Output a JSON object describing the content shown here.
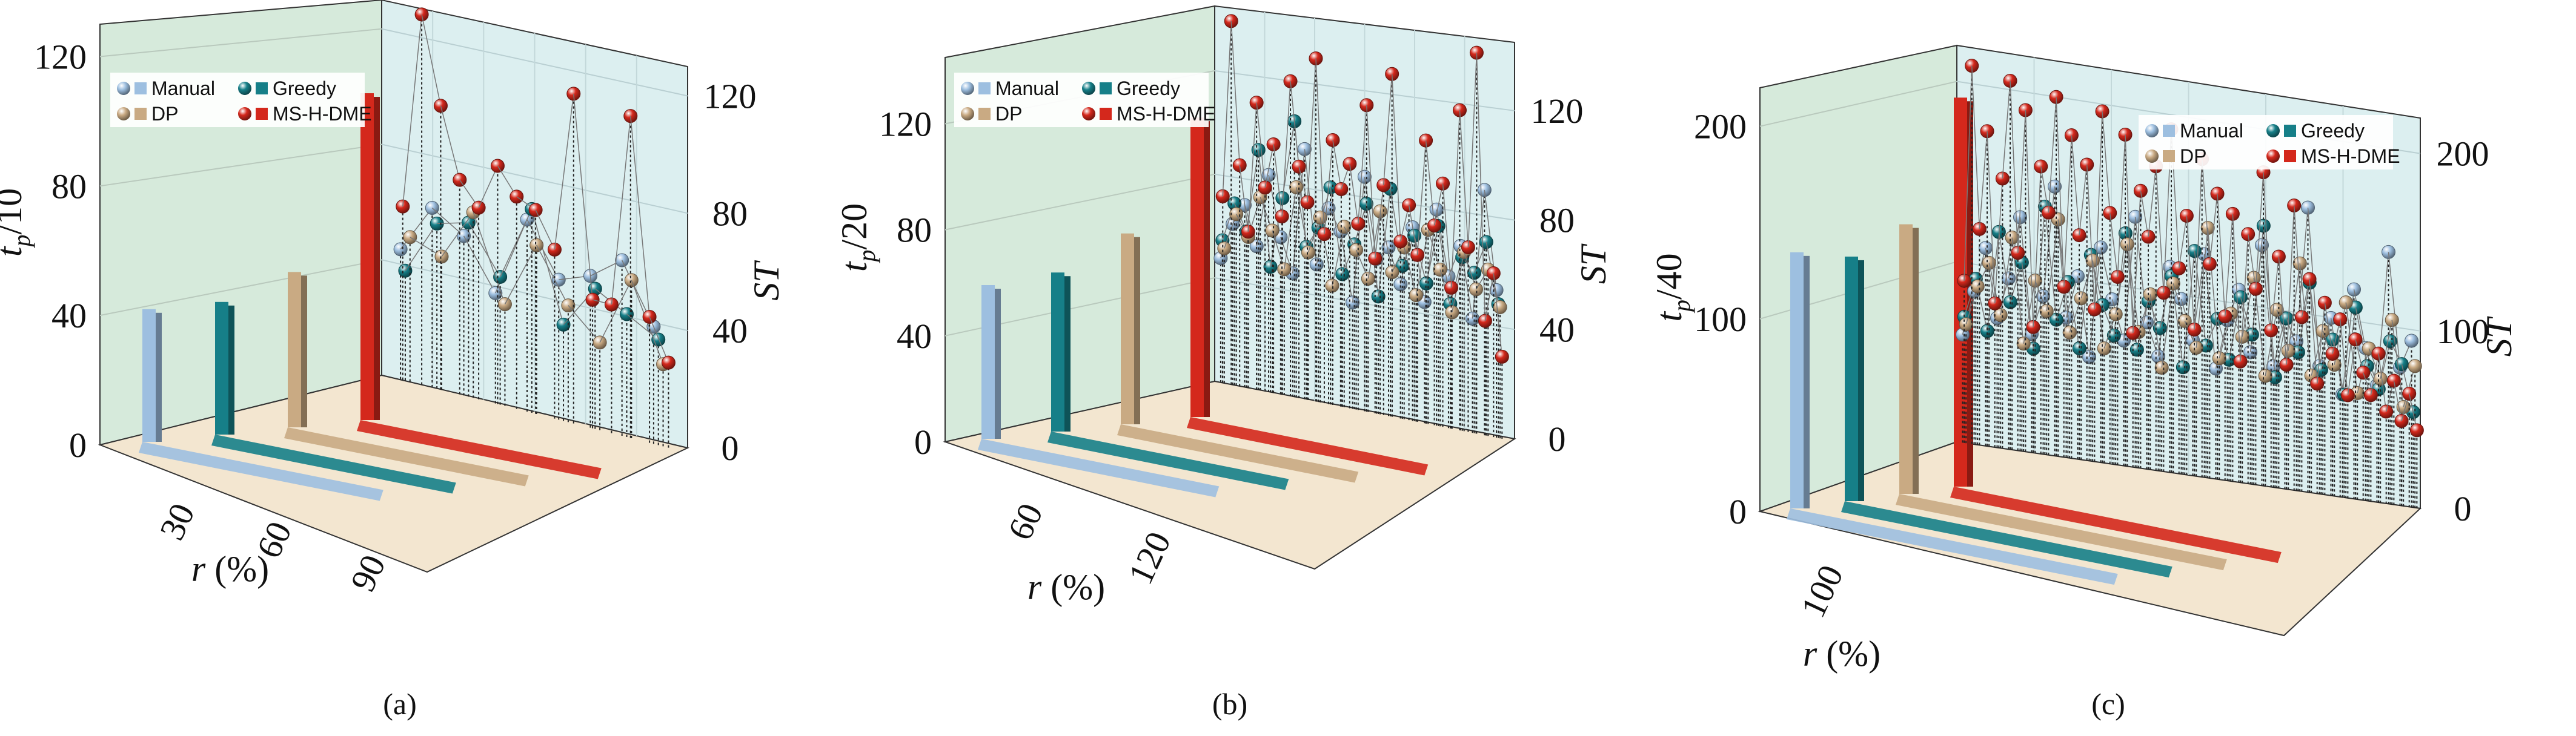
{
  "legend": {
    "entries": [
      "Manual",
      "Greedy",
      "DP",
      "MS-H-DME"
    ]
  },
  "colors": {
    "Manual": "#9dbfe0",
    "Greedy": "#167f88",
    "DP": "#c9aa83",
    "MS-H-DME": "#d4281c",
    "left_wall": "#d6eadb",
    "right_wall": "#dceff0",
    "floor": "#f3e6d0"
  },
  "chart_data": [
    {
      "panel": "a",
      "caption": "(a)",
      "type": "bar+scatter-3d",
      "left_axis": {
        "label_main": "t",
        "label_sub": "p",
        "label_suffix": "/10",
        "ticks": [
          "0",
          "40",
          "80",
          "120"
        ],
        "range": [
          0,
          130
        ]
      },
      "right_axis": {
        "label": "ST",
        "ticks": [
          "0",
          "40",
          "80",
          "120"
        ],
        "range": [
          0,
          130
        ]
      },
      "depth_axis": {
        "label": "r (%)",
        "ticks": [
          "30",
          "60",
          "90"
        ],
        "range": [
          0,
          100
        ]
      },
      "bars": [
        {
          "name": "Manual",
          "tp": 41,
          "r": 100
        },
        {
          "name": "Greedy",
          "tp": 41,
          "r": 100
        },
        {
          "name": "DP",
          "tp": 48,
          "r": 100
        },
        {
          "name": "MS-H-DME",
          "tp": 101,
          "r": 100
        }
      ],
      "series": [
        {
          "name": "Manual",
          "values": [
            45,
            62,
            55,
            38,
            66,
            48,
            52,
            60,
            40
          ]
        },
        {
          "name": "Greedy",
          "values": [
            38,
            57,
            60,
            44,
            70,
            33,
            48,
            42,
            36
          ]
        },
        {
          "name": "DP",
          "values": [
            50,
            46,
            64,
            35,
            58,
            40,
            30,
            54,
            28
          ]
        },
        {
          "name": "MS-H-DME",
          "values": [
            60,
            128,
            98,
            74,
            66,
            82,
            73,
            70,
            58,
            113,
            44,
            44,
            110,
            43,
            29
          ]
        }
      ]
    },
    {
      "panel": "b",
      "caption": "(b)",
      "type": "bar+scatter-3d",
      "left_axis": {
        "label_main": "t",
        "label_sub": "p",
        "label_suffix": "/20",
        "ticks": [
          "0",
          "40",
          "80",
          "120"
        ],
        "range": [
          0,
          145
        ]
      },
      "right_axis": {
        "label": "ST",
        "ticks": [
          "0",
          "40",
          "80",
          "120"
        ],
        "range": [
          0,
          145
        ]
      },
      "depth_axis": {
        "label": "r (%)",
        "ticks": [
          "60",
          "120"
        ],
        "range": [
          0,
          150
        ]
      },
      "bars": [
        {
          "name": "Manual",
          "tp": 58,
          "r": 150
        },
        {
          "name": "Greedy",
          "tp": 60,
          "r": 150
        },
        {
          "name": "DP",
          "tp": 72,
          "r": 150
        },
        {
          "name": "MS-H-DME",
          "tp": 113,
          "r": 150
        }
      ],
      "series": [
        {
          "name": "Manual",
          "values": [
            48,
            62,
            70,
            55,
            83,
            60,
            47,
            95,
            52,
            74,
            66,
            40,
            88,
            58,
            63,
            50,
            72,
            45,
            80,
            56,
            68,
            42,
            90,
            54
          ]
        },
        {
          "name": "Greedy",
          "values": [
            55,
            70,
            60,
            92,
            48,
            75,
            105,
            58,
            66,
            82,
            50,
            62,
            78,
            44,
            85,
            57,
            69,
            52,
            74,
            46,
            64,
            59,
            71,
            49
          ]
        },
        {
          "name": "DP",
          "values": [
            52,
            66,
            58,
            74,
            62,
            48,
            80,
            56,
            70,
            45,
            68,
            60,
            50,
            76,
            54,
            64,
            47,
            72,
            58,
            43,
            66,
            53,
            61,
            48
          ]
        },
        {
          "name": "MS-H-DME",
          "values": [
            72,
            140,
            85,
            60,
            110,
            78,
            95,
            68,
            120,
            88,
            75,
            130,
            64,
            100,
            82,
            92,
            70,
            115,
            58,
            86,
            128,
            66,
            80,
            62,
            105,
            74,
            90,
            52,
            118,
            68,
            140,
            42,
            60,
            30
          ]
        }
      ]
    },
    {
      "panel": "c",
      "caption": "(c)",
      "type": "bar+scatter-3d",
      "left_axis": {
        "label_main": "t",
        "label_sub": "p",
        "label_suffix": "/40",
        "ticks": [
          "0",
          "100",
          "200"
        ],
        "range": [
          0,
          220
        ]
      },
      "right_axis": {
        "label": "ST",
        "ticks": [
          "0",
          "100",
          "200"
        ],
        "range": [
          0,
          220
        ]
      },
      "depth_axis": {
        "label": "r (%)",
        "ticks": [
          "100"
        ],
        "range": [
          0,
          450
        ]
      },
      "bars": [
        {
          "name": "Manual",
          "tp": 133,
          "r": 450
        },
        {
          "name": "Greedy",
          "tp": 127,
          "r": 450
        },
        {
          "name": "DP",
          "tp": 140,
          "r": 450
        },
        {
          "name": "MS-H-DME",
          "tp": 202,
          "r": 450
        }
      ],
      "series": [
        {
          "name": "Manual",
          "values": [
            60,
            85,
            110,
            72,
            95,
            130,
            66,
            88,
            150,
            78,
            102,
            58,
            120,
            92,
            70,
            140,
            82,
            64,
            115,
            98,
            76,
            125,
            62,
            90,
            108,
            74,
            135,
            68,
            96,
            84,
            160,
            72,
            100,
            58,
            118,
            86,
            66,
            142,
            78,
            94
          ]
        },
        {
          "name": "Greedy",
          "values": [
            70,
            92,
            64,
            120,
            82,
            105,
            58,
            138,
            76,
            98,
            62,
            115,
            88,
            72,
            130,
            66,
            94,
            80,
            110,
            60,
            126,
            74,
            90,
            68,
            104,
            84,
            146,
            62,
            96,
            78,
            118,
            70,
            88,
            58,
            108,
            76,
            64,
            92,
            80,
            54
          ]
        },
        {
          "name": "DP",
          "values": [
            66,
            88,
            102,
            74,
            118,
            60,
            96,
            80,
            132,
            70,
            90,
            112,
            64,
            84,
            124,
            76,
            98,
            58,
            106,
            86,
            72,
            140,
            68,
            94,
            82,
            116,
            62,
            100,
            78,
            128,
            66,
            92,
            74,
            110,
            60,
            86,
            70,
            104,
            56,
            80
          ]
        },
        {
          "name": "MS-H-DME",
          "values": [
            90,
            210,
            120,
            175,
            80,
            150,
            205,
            110,
            190,
            70,
            160,
            135,
            200,
            95,
            180,
            125,
            165,
            85,
            196,
            140,
            105,
            185,
            75,
            155,
            130,
            170,
            100,
            192,
            115,
            145,
            82,
            178,
            120,
            160,
            92,
            150,
            68,
            140,
            110,
            176,
            88,
            130,
            70,
            160,
            98,
            120,
            62,
            108,
            80,
            100,
            58,
            90,
            72,
            60,
            84,
            52,
            70,
            48,
            64,
            44
          ]
        }
      ]
    }
  ]
}
